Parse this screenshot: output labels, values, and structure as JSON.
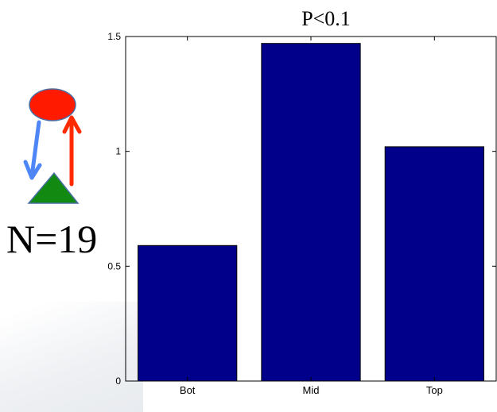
{
  "side_label": "N=19",
  "colors": {
    "circle": "#ff1a00",
    "triangle": "#128a12",
    "down_arrow": "#4f86f7",
    "up_arrow": "#ff2a00",
    "bar": "#00008b"
  },
  "icons": [
    "red-circle",
    "green-triangle",
    "blue-down-arrow",
    "red-up-arrow"
  ],
  "chart_data": {
    "type": "bar",
    "title": "P<0.1",
    "categories": [
      "Bot",
      "Mid",
      "Top"
    ],
    "values": [
      0.59,
      1.47,
      1.02
    ],
    "ylim": [
      0,
      1.5
    ],
    "yticks": [
      0,
      0.5,
      1,
      1.5
    ],
    "ytick_labels": [
      "0",
      "0.5",
      "1",
      "1.5"
    ],
    "xlabel": "",
    "ylabel": "",
    "grid": false,
    "bar_color": "#00008b"
  }
}
